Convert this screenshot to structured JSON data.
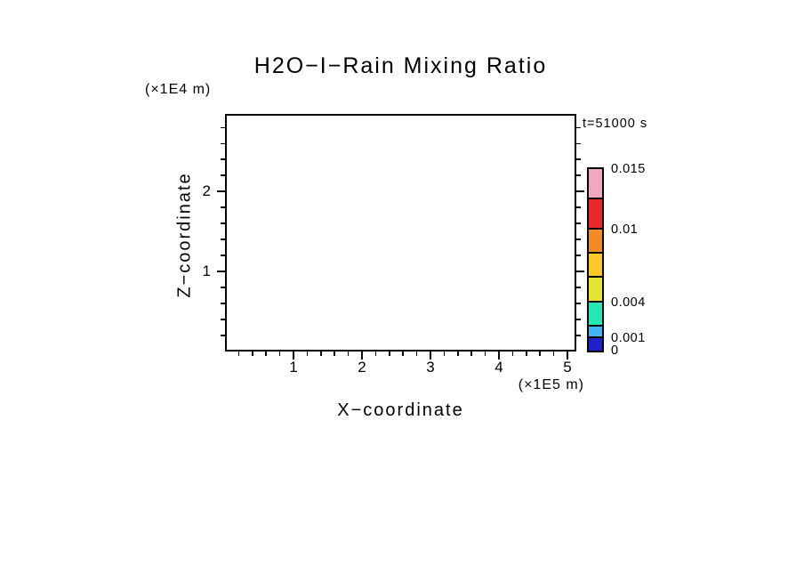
{
  "chart_data": {
    "type": "heatmap",
    "title": "H2O−I−Rain Mixing Ratio",
    "annotation": "t=51000 s",
    "x_axis": {
      "label": "X−coordinate",
      "unit": "(×1E5 m)",
      "range": [
        0,
        5.13
      ],
      "major_ticks": [
        1,
        2,
        3,
        4,
        5
      ],
      "minor_step": 0.2
    },
    "z_axis": {
      "label": "Z−coordinate",
      "unit": "(×1E4 m)",
      "range": [
        0,
        2.97
      ],
      "major_ticks": [
        1,
        2
      ],
      "minor_step": 0.2
    },
    "series": [],
    "colorbar": {
      "levels": [
        0,
        0.001,
        0.002,
        0.004,
        0.006,
        0.008,
        0.01,
        0.0125,
        0.015
      ],
      "colors": [
        "#2020c8",
        "#46b4f0",
        "#28e6b4",
        "#e6e632",
        "#fac828",
        "#f08c28",
        "#e62828",
        "#f0a8be"
      ],
      "labels": [
        {
          "value": 0.015,
          "text": "0.015"
        },
        {
          "value": 0.01,
          "text": "0.01"
        },
        {
          "value": 0.004,
          "text": "0.004"
        },
        {
          "value": 0.001,
          "text": "0.001"
        },
        {
          "value": 0,
          "text": "0"
        }
      ]
    },
    "layout": {
      "grid": false,
      "legend_position": "right-colorbar",
      "plot_area_empty": true
    }
  }
}
